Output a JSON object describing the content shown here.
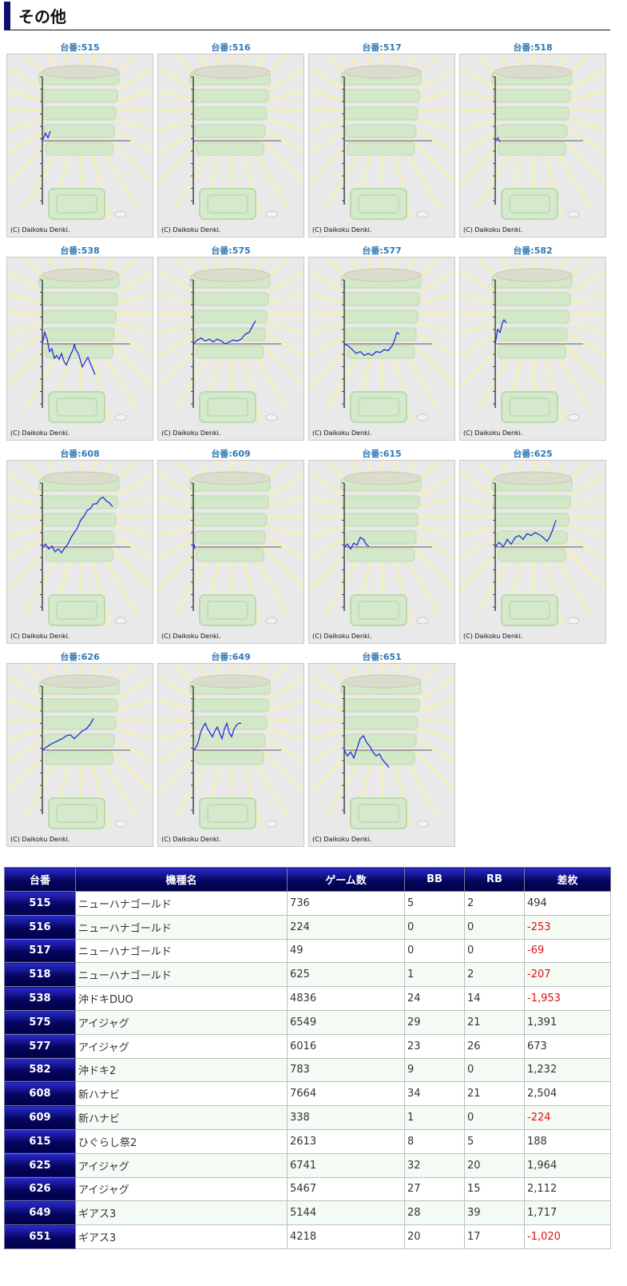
{
  "section_title": "その他",
  "copyright": "(C) Daikoku Denki.",
  "colors": {
    "accent": "#0e0e6e",
    "line": "#2a2adf",
    "negative": "#e01010",
    "label": "#2e78b4"
  },
  "graphs": [
    {
      "label": "台番:515",
      "points": [
        [
          0,
          0
        ],
        [
          4,
          -8
        ],
        [
          7,
          -3
        ],
        [
          10,
          -10
        ]
      ]
    },
    {
      "label": "台番:516",
      "points": [
        [
          0,
          0
        ],
        [
          1,
          2
        ]
      ]
    },
    {
      "label": "台番:517",
      "points": [
        [
          0,
          0
        ]
      ]
    },
    {
      "label": "台番:518",
      "points": [
        [
          0,
          0
        ],
        [
          3,
          -3
        ],
        [
          6,
          1
        ]
      ]
    },
    {
      "label": "台番:538",
      "points": [
        [
          0,
          0
        ],
        [
          3,
          -12
        ],
        [
          6,
          -5
        ],
        [
          9,
          8
        ],
        [
          12,
          5
        ],
        [
          15,
          15
        ],
        [
          18,
          12
        ],
        [
          21,
          16
        ],
        [
          24,
          10
        ],
        [
          27,
          18
        ],
        [
          30,
          22
        ],
        [
          33,
          16
        ],
        [
          36,
          10
        ],
        [
          39,
          5
        ],
        [
          40,
          0
        ],
        [
          42,
          6
        ],
        [
          45,
          10
        ],
        [
          48,
          18
        ],
        [
          50,
          24
        ],
        [
          54,
          18
        ],
        [
          57,
          14
        ],
        [
          60,
          20
        ],
        [
          63,
          26
        ],
        [
          66,
          32
        ]
      ]
    },
    {
      "label": "台番:575",
      "points": [
        [
          0,
          0
        ],
        [
          5,
          -4
        ],
        [
          10,
          -6
        ],
        [
          15,
          -3
        ],
        [
          20,
          -5
        ],
        [
          25,
          -2
        ],
        [
          30,
          -5
        ],
        [
          35,
          -3
        ],
        [
          40,
          0
        ],
        [
          45,
          -2
        ],
        [
          50,
          -4
        ],
        [
          55,
          -3
        ],
        [
          60,
          -5
        ],
        [
          65,
          -10
        ],
        [
          70,
          -12
        ],
        [
          75,
          -20
        ],
        [
          78,
          -24
        ]
      ]
    },
    {
      "label": "台番:577",
      "points": [
        [
          0,
          0
        ],
        [
          5,
          2
        ],
        [
          10,
          6
        ],
        [
          15,
          10
        ],
        [
          20,
          8
        ],
        [
          25,
          12
        ],
        [
          30,
          10
        ],
        [
          35,
          12
        ],
        [
          40,
          8
        ],
        [
          45,
          9
        ],
        [
          50,
          6
        ],
        [
          55,
          7
        ],
        [
          60,
          2
        ],
        [
          63,
          -4
        ],
        [
          66,
          -12
        ],
        [
          69,
          -10
        ]
      ]
    },
    {
      "label": "台番:582",
      "points": [
        [
          0,
          0
        ],
        [
          3,
          -15
        ],
        [
          6,
          -12
        ],
        [
          9,
          -22
        ],
        [
          11,
          -25
        ],
        [
          14,
          -22
        ]
      ]
    },
    {
      "label": "台番:608",
      "points": [
        [
          0,
          0
        ],
        [
          4,
          -3
        ],
        [
          8,
          2
        ],
        [
          12,
          -1
        ],
        [
          16,
          5
        ],
        [
          20,
          2
        ],
        [
          24,
          6
        ],
        [
          28,
          1
        ],
        [
          32,
          -3
        ],
        [
          36,
          -10
        ],
        [
          40,
          -15
        ],
        [
          44,
          -20
        ],
        [
          48,
          -28
        ],
        [
          52,
          -32
        ],
        [
          56,
          -38
        ],
        [
          60,
          -40
        ],
        [
          64,
          -45
        ],
        [
          68,
          -45
        ],
        [
          72,
          -50
        ],
        [
          76,
          -52
        ],
        [
          80,
          -48
        ],
        [
          84,
          -46
        ],
        [
          88,
          -42
        ]
      ]
    },
    {
      "label": "台番:609",
      "points": [
        [
          0,
          0
        ],
        [
          1,
          -3
        ],
        [
          2,
          2
        ]
      ]
    },
    {
      "label": "台番:615",
      "points": [
        [
          0,
          0
        ],
        [
          4,
          -3
        ],
        [
          8,
          2
        ],
        [
          12,
          -4
        ],
        [
          16,
          -2
        ],
        [
          20,
          -10
        ],
        [
          24,
          -8
        ],
        [
          28,
          -2
        ],
        [
          31,
          -1
        ]
      ]
    },
    {
      "label": "台番:625",
      "points": [
        [
          0,
          0
        ],
        [
          5,
          -5
        ],
        [
          10,
          0
        ],
        [
          15,
          -8
        ],
        [
          20,
          -3
        ],
        [
          25,
          -10
        ],
        [
          30,
          -12
        ],
        [
          35,
          -8
        ],
        [
          40,
          -14
        ],
        [
          45,
          -12
        ],
        [
          50,
          -15
        ],
        [
          55,
          -13
        ],
        [
          60,
          -10
        ],
        [
          65,
          -6
        ],
        [
          68,
          -10
        ],
        [
          72,
          -18
        ],
        [
          76,
          -28
        ]
      ]
    },
    {
      "label": "台番:626",
      "points": [
        [
          0,
          0
        ],
        [
          5,
          -3
        ],
        [
          10,
          -6
        ],
        [
          15,
          -8
        ],
        [
          20,
          -10
        ],
        [
          25,
          -12
        ],
        [
          30,
          -15
        ],
        [
          35,
          -16
        ],
        [
          40,
          -12
        ],
        [
          45,
          -16
        ],
        [
          50,
          -20
        ],
        [
          55,
          -22
        ],
        [
          60,
          -27
        ],
        [
          64,
          -33
        ]
      ]
    },
    {
      "label": "台番:649",
      "points": [
        [
          0,
          0
        ],
        [
          3,
          -2
        ],
        [
          6,
          -8
        ],
        [
          9,
          -18
        ],
        [
          12,
          -24
        ],
        [
          15,
          -28
        ],
        [
          18,
          -22
        ],
        [
          21,
          -18
        ],
        [
          24,
          -14
        ],
        [
          27,
          -20
        ],
        [
          30,
          -24
        ],
        [
          33,
          -18
        ],
        [
          36,
          -12
        ],
        [
          39,
          -22
        ],
        [
          42,
          -28
        ],
        [
          45,
          -18
        ],
        [
          48,
          -14
        ],
        [
          51,
          -22
        ],
        [
          54,
          -26
        ],
        [
          57,
          -28
        ],
        [
          60,
          -28
        ]
      ]
    },
    {
      "label": "台番:651",
      "points": [
        [
          0,
          0
        ],
        [
          4,
          6
        ],
        [
          8,
          2
        ],
        [
          12,
          8
        ],
        [
          16,
          -2
        ],
        [
          20,
          -12
        ],
        [
          24,
          -15
        ],
        [
          28,
          -8
        ],
        [
          32,
          -4
        ],
        [
          36,
          2
        ],
        [
          40,
          6
        ],
        [
          44,
          4
        ],
        [
          48,
          10
        ],
        [
          52,
          14
        ],
        [
          56,
          18
        ]
      ]
    }
  ],
  "table": {
    "headers": [
      "台番",
      "機種名",
      "ゲーム数",
      "BB",
      "RB",
      "差枚"
    ],
    "rows": [
      {
        "no": "515",
        "name": "ニューハナゴールド",
        "games": "736",
        "bb": "5",
        "rb": "2",
        "diff": "494",
        "neg": false
      },
      {
        "no": "516",
        "name": "ニューハナゴールド",
        "games": "224",
        "bb": "0",
        "rb": "0",
        "diff": "-253",
        "neg": true
      },
      {
        "no": "517",
        "name": "ニューハナゴールド",
        "games": "49",
        "bb": "0",
        "rb": "0",
        "diff": "-69",
        "neg": true
      },
      {
        "no": "518",
        "name": "ニューハナゴールド",
        "games": "625",
        "bb": "1",
        "rb": "2",
        "diff": "-207",
        "neg": true
      },
      {
        "no": "538",
        "name": "沖ドキDUO",
        "games": "4836",
        "bb": "24",
        "rb": "14",
        "diff": "-1,953",
        "neg": true
      },
      {
        "no": "575",
        "name": "アイジャグ",
        "games": "6549",
        "bb": "29",
        "rb": "21",
        "diff": "1,391",
        "neg": false
      },
      {
        "no": "577",
        "name": "アイジャグ",
        "games": "6016",
        "bb": "23",
        "rb": "26",
        "diff": "673",
        "neg": false
      },
      {
        "no": "582",
        "name": "沖ドキ2",
        "games": "783",
        "bb": "9",
        "rb": "0",
        "diff": "1,232",
        "neg": false
      },
      {
        "no": "608",
        "name": "新ハナビ",
        "games": "7664",
        "bb": "34",
        "rb": "21",
        "diff": "2,504",
        "neg": false
      },
      {
        "no": "609",
        "name": "新ハナビ",
        "games": "338",
        "bb": "1",
        "rb": "0",
        "diff": "-224",
        "neg": true
      },
      {
        "no": "615",
        "name": "ひぐらし祭2",
        "games": "2613",
        "bb": "8",
        "rb": "5",
        "diff": "188",
        "neg": false
      },
      {
        "no": "625",
        "name": "アイジャグ",
        "games": "6741",
        "bb": "32",
        "rb": "20",
        "diff": "1,964",
        "neg": false
      },
      {
        "no": "626",
        "name": "アイジャグ",
        "games": "5467",
        "bb": "27",
        "rb": "15",
        "diff": "2,112",
        "neg": false
      },
      {
        "no": "649",
        "name": "ギアス3",
        "games": "5144",
        "bb": "28",
        "rb": "39",
        "diff": "1,717",
        "neg": false
      },
      {
        "no": "651",
        "name": "ギアス3",
        "games": "4218",
        "bb": "20",
        "rb": "17",
        "diff": "-1,020",
        "neg": true
      }
    ]
  }
}
